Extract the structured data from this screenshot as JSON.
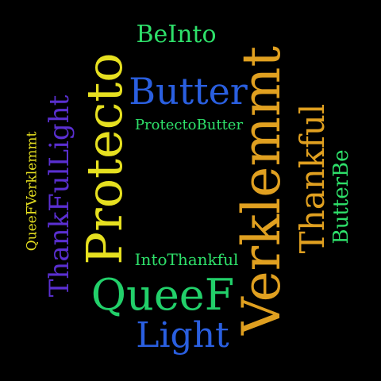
{
  "colors": {
    "background": "#000000",
    "green": "#2ee06a",
    "blue": "#2a5fe0",
    "yellow": "#e6e020",
    "orange": "#e0a020",
    "violet": "#5a2fd0",
    "bright_green": "#22d06a"
  },
  "words": {
    "beinto": "BeInto",
    "butter": "Butter",
    "protectobutter": "ProtectoButter",
    "intothankful": "IntoThankful",
    "queef": "QueeF",
    "light": "Light",
    "protecto": "Protecto",
    "verklemmt": "Verklemmt",
    "thankful": "Thankful",
    "butterbe": "ButterBe",
    "thankfullight": "ThankFulLight",
    "queefverklemmt": "QueeFVerklemmt"
  }
}
